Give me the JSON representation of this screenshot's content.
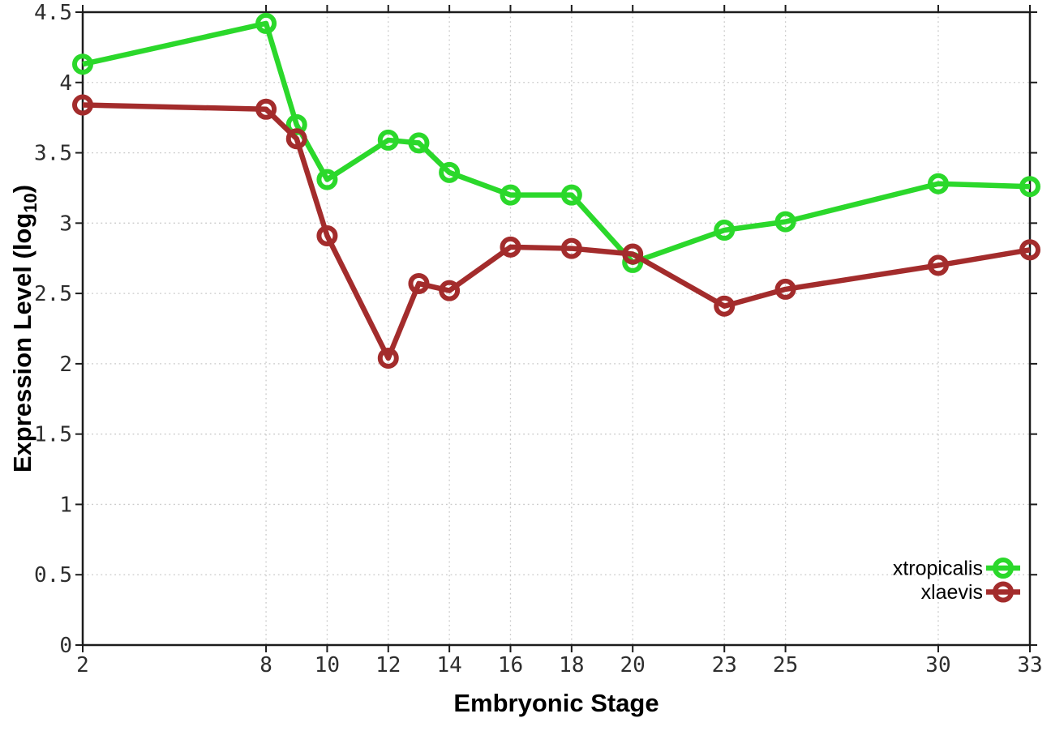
{
  "chart_data": {
    "type": "line",
    "title": "",
    "xlabel": "Embryonic Stage",
    "ylabel": {
      "pre": "Expression Level (log",
      "sub": "10",
      "post": ")"
    },
    "ylabel_plain": "Expression Level (log10)",
    "xlim": [
      2,
      33
    ],
    "ylim": [
      0,
      4.5
    ],
    "grid": "dotted",
    "xticks": {
      "values": [
        2,
        8,
        10,
        12,
        14,
        16,
        18,
        20,
        23,
        25,
        30,
        33
      ],
      "labels": [
        "2",
        "8",
        "10",
        "12",
        "14",
        "16",
        "18",
        "20",
        "23",
        "25",
        "30",
        "33"
      ]
    },
    "yticks": {
      "values": [
        0,
        0.5,
        1,
        1.5,
        2,
        2.5,
        3,
        3.5,
        4,
        4.5
      ],
      "labels": [
        "0",
        "0.5",
        "1",
        "1.5",
        "2",
        "2.5",
        "3",
        "3.5",
        "4",
        "4.5"
      ]
    },
    "x": [
      2,
      8,
      9,
      10,
      12,
      13,
      14,
      16,
      18,
      20,
      23,
      25,
      30,
      33
    ],
    "series": [
      {
        "name": "xtropicalis",
        "color": "#2bd82b",
        "marker": "open-circle",
        "values": [
          4.13,
          4.42,
          3.7,
          3.31,
          3.59,
          3.57,
          3.36,
          3.2,
          3.2,
          2.72,
          2.95,
          3.01,
          3.28,
          3.26
        ]
      },
      {
        "name": "xlaevis",
        "color": "#a32c2c",
        "marker": "open-circle",
        "values": [
          3.84,
          3.81,
          3.6,
          2.91,
          2.04,
          2.57,
          2.52,
          2.83,
          2.82,
          2.78,
          2.41,
          2.53,
          2.7,
          2.81
        ]
      }
    ],
    "legend": {
      "position": "inside-bottom-right",
      "entries": [
        "xtropicalis",
        "xlaevis"
      ]
    },
    "colors": {
      "background": "#ffffff",
      "axis": "#1c1c1c",
      "grid": "#c9c9c9",
      "tick_text": "#2e2e2e"
    }
  }
}
